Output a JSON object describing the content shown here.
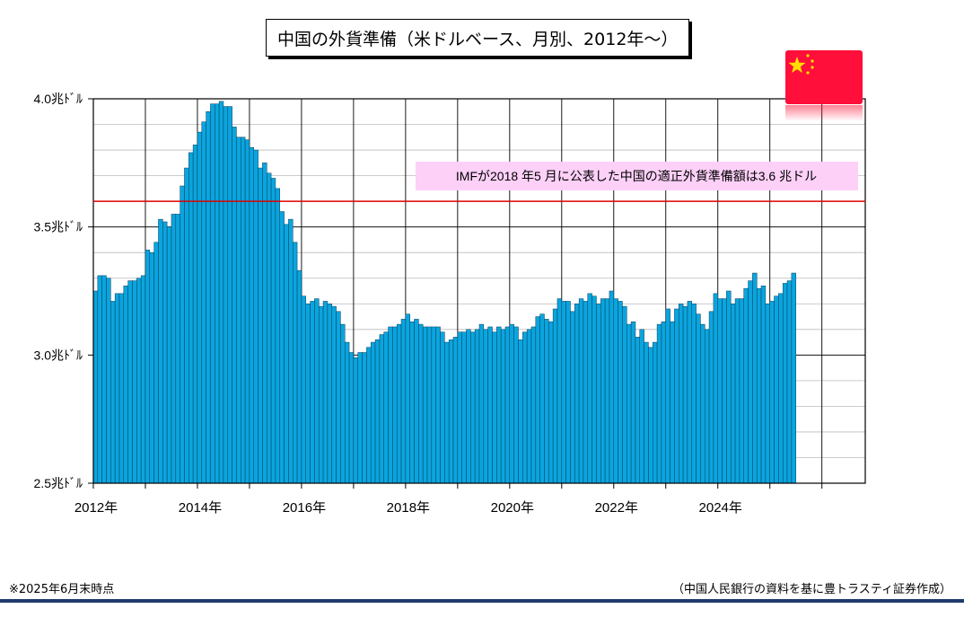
{
  "title": "中国の外貨準備（米ドルベース、月別、2012年～）",
  "annotation": "IMFが2018 年5 月に公表した中国の適正外貨準備額は3.6 兆ドル",
  "footnote_left": "※2025年6月末時点",
  "footnote_right": "（中国人民銀行の資料を基に豊トラスティ証券作成）",
  "flag_icon": "china-flag-icon",
  "colors": {
    "bar": "#0aa5de",
    "bar_edge": "#0a3d5c",
    "reference_line": "#e00000",
    "annotation_bg": "#fdd0f8",
    "footer_rule": "#1f3a6e"
  },
  "chart_data": {
    "type": "bar",
    "title": "中国の外貨準備（米ドルベース、月別、2012年～）",
    "xlabel": "",
    "ylabel": "",
    "ylim": [
      2.5,
      4.0
    ],
    "yticks": [
      2.5,
      3.0,
      3.5,
      4.0
    ],
    "ytick_labels": [
      "2.5兆ﾄﾞﾙ",
      "3.0兆ﾄﾞﾙ",
      "3.5兆ﾄﾞﾙ",
      "4.0兆ﾄﾞﾙ"
    ],
    "xtick_labels": [
      "2012年",
      "2014年",
      "2016年",
      "2018年",
      "2020年",
      "2022年",
      "2024年"
    ],
    "grid": true,
    "reference_line": {
      "value": 3.6,
      "label": "IMFが2018 年5 月に公表した中国の適正外貨準備額は3.6 兆ドル"
    },
    "categories": [
      "2012-01",
      "2012-02",
      "2012-03",
      "2012-04",
      "2012-05",
      "2012-06",
      "2012-07",
      "2012-08",
      "2012-09",
      "2012-10",
      "2012-11",
      "2012-12",
      "2013-01",
      "2013-02",
      "2013-03",
      "2013-04",
      "2013-05",
      "2013-06",
      "2013-07",
      "2013-08",
      "2013-09",
      "2013-10",
      "2013-11",
      "2013-12",
      "2014-01",
      "2014-02",
      "2014-03",
      "2014-04",
      "2014-05",
      "2014-06",
      "2014-07",
      "2014-08",
      "2014-09",
      "2014-10",
      "2014-11",
      "2014-12",
      "2015-01",
      "2015-02",
      "2015-03",
      "2015-04",
      "2015-05",
      "2015-06",
      "2015-07",
      "2015-08",
      "2015-09",
      "2015-10",
      "2015-11",
      "2015-12",
      "2016-01",
      "2016-02",
      "2016-03",
      "2016-04",
      "2016-05",
      "2016-06",
      "2016-07",
      "2016-08",
      "2016-09",
      "2016-10",
      "2016-11",
      "2016-12",
      "2017-01",
      "2017-02",
      "2017-03",
      "2017-04",
      "2017-05",
      "2017-06",
      "2017-07",
      "2017-08",
      "2017-09",
      "2017-10",
      "2017-11",
      "2017-12",
      "2018-01",
      "2018-02",
      "2018-03",
      "2018-04",
      "2018-05",
      "2018-06",
      "2018-07",
      "2018-08",
      "2018-09",
      "2018-10",
      "2018-11",
      "2018-12",
      "2019-01",
      "2019-02",
      "2019-03",
      "2019-04",
      "2019-05",
      "2019-06",
      "2019-07",
      "2019-08",
      "2019-09",
      "2019-10",
      "2019-11",
      "2019-12",
      "2020-01",
      "2020-02",
      "2020-03",
      "2020-04",
      "2020-05",
      "2020-06",
      "2020-07",
      "2020-08",
      "2020-09",
      "2020-10",
      "2020-11",
      "2020-12",
      "2021-01",
      "2021-02",
      "2021-03",
      "2021-04",
      "2021-05",
      "2021-06",
      "2021-07",
      "2021-08",
      "2021-09",
      "2021-10",
      "2021-11",
      "2021-12",
      "2022-01",
      "2022-02",
      "2022-03",
      "2022-04",
      "2022-05",
      "2022-06",
      "2022-07",
      "2022-08",
      "2022-09",
      "2022-10",
      "2022-11",
      "2022-12",
      "2023-01",
      "2023-02",
      "2023-03",
      "2023-04",
      "2023-05",
      "2023-06",
      "2023-07",
      "2023-08",
      "2023-09",
      "2023-10",
      "2023-11",
      "2023-12",
      "2024-01",
      "2024-02",
      "2024-03",
      "2024-04",
      "2024-05",
      "2024-06",
      "2024-07",
      "2024-08",
      "2024-09",
      "2024-10",
      "2024-11",
      "2024-12",
      "2025-01",
      "2025-02",
      "2025-03",
      "2025-04",
      "2025-05",
      "2025-06"
    ],
    "values": [
      3.25,
      3.31,
      3.31,
      3.3,
      3.21,
      3.24,
      3.24,
      3.27,
      3.29,
      3.29,
      3.3,
      3.31,
      3.41,
      3.4,
      3.44,
      3.53,
      3.52,
      3.5,
      3.55,
      3.55,
      3.66,
      3.73,
      3.79,
      3.82,
      3.87,
      3.91,
      3.95,
      3.98,
      3.98,
      3.99,
      3.97,
      3.97,
      3.89,
      3.85,
      3.85,
      3.84,
      3.81,
      3.8,
      3.73,
      3.75,
      3.71,
      3.69,
      3.65,
      3.56,
      3.51,
      3.53,
      3.44,
      3.33,
      3.23,
      3.2,
      3.21,
      3.22,
      3.19,
      3.21,
      3.2,
      3.19,
      3.17,
      3.12,
      3.05,
      3.01,
      2.99,
      3.01,
      3.01,
      3.03,
      3.05,
      3.06,
      3.08,
      3.09,
      3.11,
      3.11,
      3.12,
      3.14,
      3.16,
      3.13,
      3.14,
      3.12,
      3.11,
      3.11,
      3.11,
      3.11,
      3.09,
      3.05,
      3.06,
      3.07,
      3.09,
      3.09,
      3.1,
      3.09,
      3.1,
      3.12,
      3.1,
      3.11,
      3.09,
      3.11,
      3.1,
      3.11,
      3.12,
      3.11,
      3.06,
      3.09,
      3.1,
      3.11,
      3.15,
      3.16,
      3.14,
      3.13,
      3.18,
      3.22,
      3.21,
      3.21,
      3.17,
      3.2,
      3.22,
      3.21,
      3.24,
      3.23,
      3.2,
      3.22,
      3.22,
      3.25,
      3.22,
      3.21,
      3.19,
      3.12,
      3.13,
      3.07,
      3.1,
      3.05,
      3.03,
      3.05,
      3.12,
      3.13,
      3.18,
      3.13,
      3.18,
      3.2,
      3.19,
      3.21,
      3.2,
      3.16,
      3.12,
      3.1,
      3.17,
      3.24,
      3.22,
      3.22,
      3.25,
      3.2,
      3.22,
      3.22,
      3.26,
      3.29,
      3.32,
      3.26,
      3.27,
      3.2,
      3.21,
      3.23,
      3.24,
      3.28,
      3.29,
      3.32
    ]
  }
}
